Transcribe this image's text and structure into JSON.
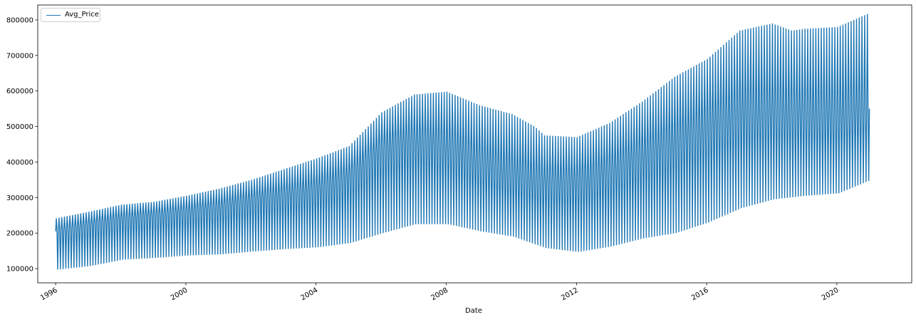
{
  "chart_data": {
    "type": "line",
    "title": "",
    "xlabel": "Date",
    "ylabel": "",
    "xlim": [
      1995.45,
      2022.3
    ],
    "ylim": [
      60000,
      842000
    ],
    "x_ticks": [
      1996,
      2000,
      2004,
      2008,
      2012,
      2016,
      2020
    ],
    "x_tick_labels": [
      "1996",
      "2000",
      "2004",
      "2008",
      "2012",
      "2016",
      "2020"
    ],
    "y_ticks": [
      100000,
      200000,
      300000,
      400000,
      500000,
      600000,
      700000,
      800000
    ],
    "y_tick_labels": [
      "100000",
      "200000",
      "300000",
      "400000",
      "500000",
      "600000",
      "700000",
      "800000"
    ],
    "grid": false,
    "legend_position": "top-left",
    "series": [
      {
        "name": "Avg_Price",
        "color": "#1f77b4",
        "x_range": [
          1996,
          2021
        ],
        "note_points": "monthly observations oscillating between per-month low and high envelope values",
        "envelope_upper": [
          [
            1996,
            242000
          ],
          [
            1997,
            260000
          ],
          [
            1998,
            280000
          ],
          [
            1999,
            288000
          ],
          [
            2000,
            305000
          ],
          [
            2001,
            325000
          ],
          [
            2002,
            350000
          ],
          [
            2003,
            380000
          ],
          [
            2004,
            410000
          ],
          [
            2005,
            445000
          ],
          [
            2006,
            540000
          ],
          [
            2007,
            590000
          ],
          [
            2008,
            598000
          ],
          [
            2009,
            560000
          ],
          [
            2010,
            535000
          ],
          [
            2010.7,
            500000
          ],
          [
            2011,
            475000
          ],
          [
            2012,
            470000
          ],
          [
            2013,
            510000
          ],
          [
            2014,
            570000
          ],
          [
            2015,
            640000
          ],
          [
            2016,
            690000
          ],
          [
            2017,
            770000
          ],
          [
            2018,
            790000
          ],
          [
            2018.6,
            770000
          ],
          [
            2019,
            775000
          ],
          [
            2020,
            780000
          ],
          [
            2021,
            820000
          ]
        ],
        "envelope_mid": [
          [
            1996,
            205000
          ],
          [
            1997,
            225000
          ],
          [
            1998,
            242000
          ],
          [
            1999,
            252000
          ],
          [
            2000,
            262000
          ],
          [
            2001,
            275000
          ],
          [
            2002,
            295000
          ],
          [
            2003,
            310000
          ],
          [
            2004,
            325000
          ],
          [
            2005,
            360000
          ],
          [
            2006,
            440000
          ],
          [
            2007,
            462000
          ],
          [
            2008,
            445000
          ],
          [
            2009,
            400000
          ],
          [
            2010,
            365000
          ],
          [
            2011,
            345000
          ],
          [
            2012,
            345000
          ],
          [
            2013,
            375000
          ],
          [
            2014,
            420000
          ],
          [
            2015,
            455000
          ],
          [
            2016,
            500000
          ],
          [
            2017,
            535000
          ],
          [
            2018,
            540000
          ],
          [
            2019,
            535000
          ],
          [
            2020,
            530000
          ],
          [
            2021,
            550000
          ]
        ],
        "envelope_lower": [
          [
            1996,
            97000
          ],
          [
            1997,
            107000
          ],
          [
            1998,
            125000
          ],
          [
            1999,
            130000
          ],
          [
            2000,
            137000
          ],
          [
            2001,
            140000
          ],
          [
            2002,
            148000
          ],
          [
            2003,
            155000
          ],
          [
            2004,
            160000
          ],
          [
            2005,
            172000
          ],
          [
            2006,
            200000
          ],
          [
            2007,
            225000
          ],
          [
            2008,
            225000
          ],
          [
            2009,
            205000
          ],
          [
            2010,
            190000
          ],
          [
            2011,
            158000
          ],
          [
            2012,
            147000
          ],
          [
            2013,
            162000
          ],
          [
            2014,
            185000
          ],
          [
            2015,
            200000
          ],
          [
            2016,
            230000
          ],
          [
            2017,
            270000
          ],
          [
            2018,
            295000
          ],
          [
            2019,
            305000
          ],
          [
            2020,
            312000
          ],
          [
            2021,
            350000
          ]
        ]
      }
    ]
  }
}
